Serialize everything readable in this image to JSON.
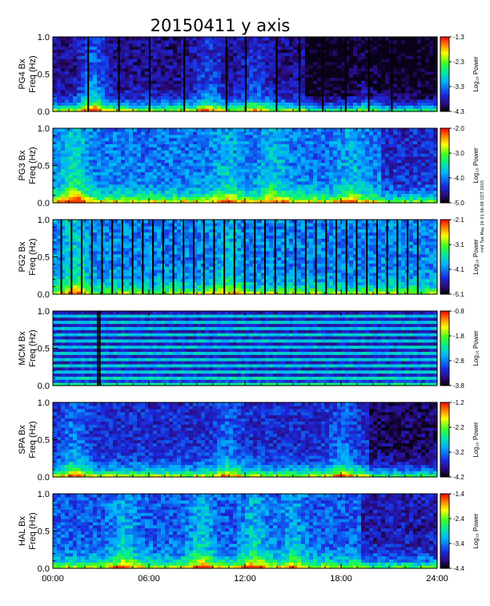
{
  "figure": {
    "title": "20150411 y axis",
    "stamp": "mhf Tue May 26 01:06:09 CDT 2015"
  },
  "chart_data": {
    "type": "heatmap",
    "x_axis": {
      "range": [
        "00:00",
        "24:00"
      ],
      "tick_labels": [
        "00:00",
        "06:00",
        "12:00",
        "18:00",
        "24:00"
      ]
    },
    "panels": [
      {
        "station_label": "PG4 Bx",
        "ylabel": "Freq (Hz)",
        "ylim": [
          0,
          1.0
        ],
        "y_ticks": [
          "0.0",
          "0.5",
          "1.0"
        ],
        "colorbar": {
          "label": "Log₁₀ Power",
          "range": [
            -4.3,
            -1.3
          ],
          "ticks": [
            "-1.3",
            "-2.3",
            "-3.3",
            "-4.3"
          ]
        }
      },
      {
        "station_label": "PG3 Bx",
        "ylabel": "Freq (Hz)",
        "ylim": [
          0,
          1.0
        ],
        "y_ticks": [
          "0.0",
          "0.5",
          "1.0"
        ],
        "colorbar": {
          "label": "Log₁₀ Power",
          "range": [
            -5.0,
            -2.0
          ],
          "ticks": [
            "-2.0",
            "-3.0",
            "-4.0",
            "-5.0"
          ]
        }
      },
      {
        "station_label": "PG2 Bx",
        "ylabel": "Freq (Hz)",
        "ylim": [
          0,
          1.0
        ],
        "y_ticks": [
          "0.0",
          "0.5",
          "1.0"
        ],
        "colorbar": {
          "label": "Log₁₀ Power",
          "range": [
            -5.1,
            -2.1
          ],
          "ticks": [
            "-2.1",
            "-3.1",
            "-4.1",
            "-5.1"
          ]
        }
      },
      {
        "station_label": "MCM Bx",
        "ylabel": "Freq (Hz)",
        "ylim": [
          0,
          1.0
        ],
        "y_ticks": [
          "0.0",
          "0.5",
          "1.0"
        ],
        "colorbar": {
          "label": "Log₁₀ Power",
          "range": [
            -3.8,
            -0.8
          ],
          "ticks": [
            "-0.8",
            "-1.8",
            "-2.8",
            "-3.8"
          ]
        }
      },
      {
        "station_label": "SPA Bx",
        "ylabel": "Freq (Hz)",
        "ylim": [
          0,
          1.0
        ],
        "y_ticks": [
          "0.0",
          "0.5",
          "1.0"
        ],
        "colorbar": {
          "label": "Log₁₀ Power",
          "range": [
            -4.2,
            -1.2
          ],
          "ticks": [
            "-1.2",
            "-2.2",
            "-3.2",
            "-4.2"
          ]
        }
      },
      {
        "station_label": "HAL Bx",
        "ylabel": "Freq (Hz)",
        "ylim": [
          0,
          1.0
        ],
        "y_ticks": [
          "0.0",
          "0.5",
          "1.0"
        ],
        "colorbar": {
          "label": "Log₁₀ Power",
          "range": [
            -4.4,
            -1.4
          ],
          "ticks": [
            "-1.4",
            "-2.4",
            "-3.4",
            "-4.4"
          ]
        }
      }
    ]
  }
}
